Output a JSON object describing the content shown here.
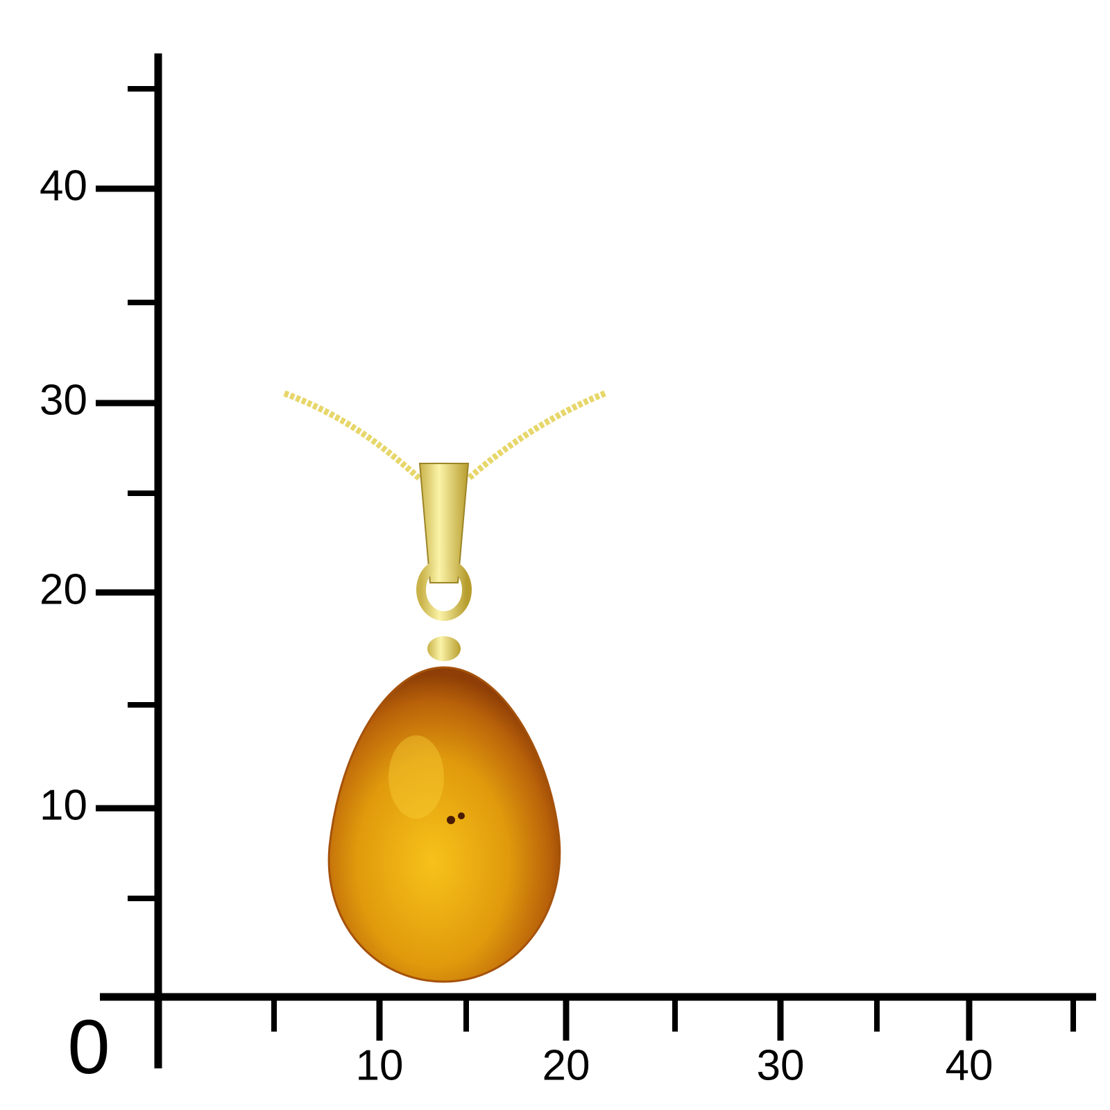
{
  "scale": {
    "origin_label": "0",
    "x_labels": [
      "10",
      "20",
      "30",
      "40"
    ],
    "y_labels": [
      "10",
      "20",
      "30",
      "40"
    ]
  }
}
